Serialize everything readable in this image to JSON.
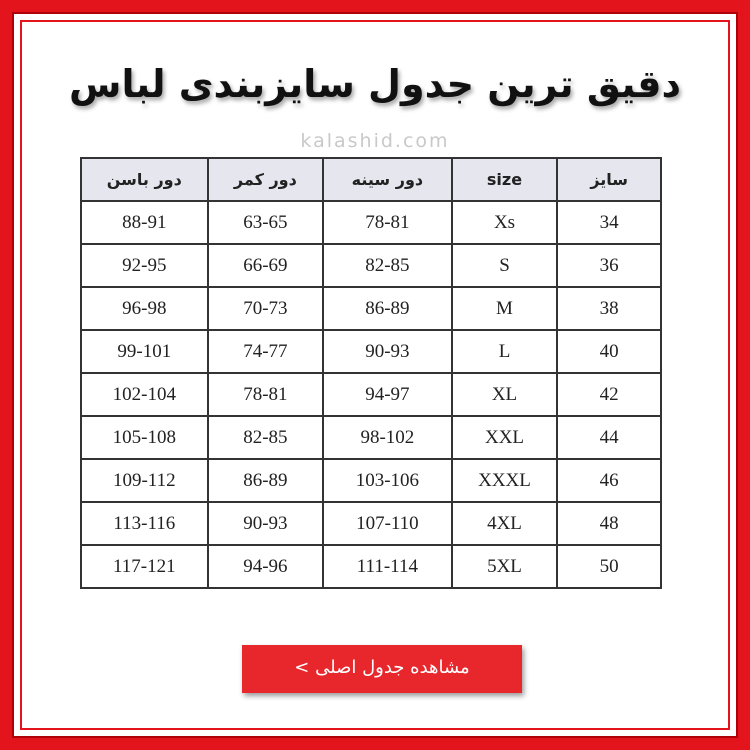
{
  "header": {
    "title": "دقیق ترین جدول سایزبندی لباس",
    "watermark": "kalashid.com"
  },
  "table": {
    "columns": [
      "سایز",
      "size",
      "دور سینه",
      "دور کمر",
      "دور باسن"
    ],
    "rows": [
      [
        "34",
        "Xs",
        "78-81",
        "63-65",
        "88-91"
      ],
      [
        "36",
        "S",
        "82-85",
        "66-69",
        "92-95"
      ],
      [
        "38",
        "M",
        "86-89",
        "70-73",
        "96-98"
      ],
      [
        "40",
        "L",
        "90-93",
        "74-77",
        "99-101"
      ],
      [
        "42",
        "XL",
        "94-97",
        "78-81",
        "102-104"
      ],
      [
        "44",
        "XXL",
        "98-102",
        "82-85",
        "105-108"
      ],
      [
        "46",
        "XXXL",
        "103-106",
        "86-89",
        "109-112"
      ],
      [
        "48",
        "4XL",
        "107-110",
        "90-93",
        "113-116"
      ],
      [
        "50",
        "5XL",
        "111-114",
        "94-96",
        "117-121"
      ]
    ]
  },
  "button": {
    "label": "مشاهده جدول اصلی >"
  }
}
